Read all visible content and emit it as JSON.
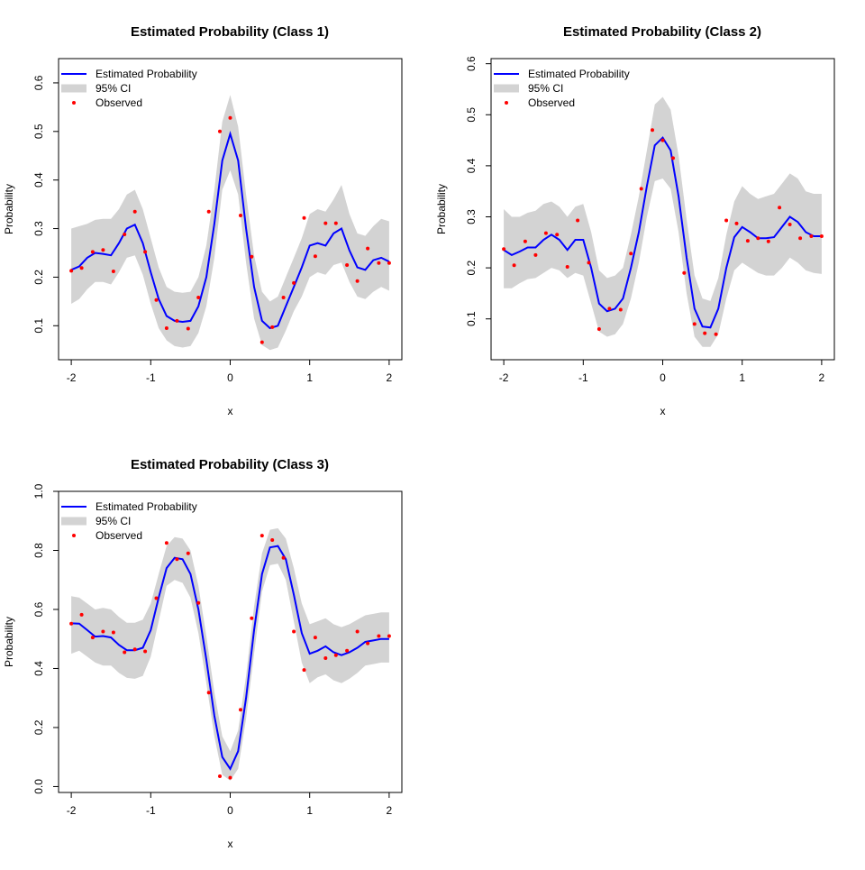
{
  "chart_data": [
    {
      "type": "line",
      "title": "Estimated Probability (Class 1)",
      "xlabel": "x",
      "ylabel": "Probability",
      "xlim": [
        -2,
        2
      ],
      "ylim": [
        0.03,
        0.65
      ],
      "xticks": [
        "-2",
        "-1",
        "0",
        "1",
        "2"
      ],
      "yticks": [
        "0.1",
        "0.2",
        "0.3",
        "0.4",
        "0.5",
        "0.6"
      ],
      "legend": {
        "position": "top-left",
        "entries": [
          "Estimated Probability",
          "95% CI",
          "Observed"
        ]
      },
      "colors": {
        "estimate": "#0000ff",
        "ci": "#d3d3d3",
        "observed": "#ff0000"
      },
      "series": [
        {
          "name": "Estimated Probability",
          "x": [
            -2,
            -1.9,
            -1.8,
            -1.7,
            -1.6,
            -1.5,
            -1.4,
            -1.3,
            -1.2,
            -1.1,
            -1.0,
            -0.9,
            -0.8,
            -0.7,
            -0.6,
            -0.5,
            -0.4,
            -0.3,
            -0.2,
            -0.1,
            0.0,
            0.1,
            0.2,
            0.3,
            0.4,
            0.5,
            0.6,
            0.7,
            0.8,
            0.9,
            1.0,
            1.1,
            1.2,
            1.3,
            1.4,
            1.5,
            1.6,
            1.7,
            1.8,
            1.9,
            2.0
          ],
          "y": [
            0.215,
            0.222,
            0.24,
            0.25,
            0.248,
            0.245,
            0.27,
            0.3,
            0.308,
            0.27,
            0.21,
            0.155,
            0.12,
            0.11,
            0.108,
            0.11,
            0.14,
            0.2,
            0.31,
            0.44,
            0.495,
            0.44,
            0.3,
            0.18,
            0.11,
            0.095,
            0.1,
            0.14,
            0.18,
            0.22,
            0.265,
            0.27,
            0.265,
            0.29,
            0.3,
            0.255,
            0.22,
            0.215,
            0.235,
            0.24,
            0.232
          ]
        },
        {
          "name": "95% CI",
          "lower": [
            0.145,
            0.155,
            0.175,
            0.19,
            0.19,
            0.185,
            0.21,
            0.24,
            0.245,
            0.205,
            0.145,
            0.095,
            0.07,
            0.058,
            0.055,
            0.058,
            0.085,
            0.14,
            0.24,
            0.38,
            0.42,
            0.37,
            0.23,
            0.115,
            0.06,
            0.05,
            0.055,
            0.09,
            0.13,
            0.16,
            0.2,
            0.21,
            0.205,
            0.225,
            0.23,
            0.19,
            0.16,
            0.155,
            0.17,
            0.18,
            0.172
          ],
          "upper": [
            0.3,
            0.305,
            0.31,
            0.318,
            0.32,
            0.32,
            0.34,
            0.37,
            0.38,
            0.34,
            0.28,
            0.22,
            0.18,
            0.17,
            0.168,
            0.17,
            0.2,
            0.265,
            0.38,
            0.52,
            0.575,
            0.51,
            0.37,
            0.245,
            0.17,
            0.15,
            0.16,
            0.2,
            0.24,
            0.28,
            0.33,
            0.34,
            0.335,
            0.36,
            0.39,
            0.33,
            0.29,
            0.285,
            0.305,
            0.32,
            0.315
          ]
        },
        {
          "name": "Observed",
          "x": [
            -2.0,
            -1.87,
            -1.73,
            -1.6,
            -1.47,
            -1.33,
            -1.2,
            -1.07,
            -0.93,
            -0.8,
            -0.67,
            -0.53,
            -0.4,
            -0.27,
            -0.13,
            0.0,
            0.13,
            0.27,
            0.4,
            0.53,
            0.67,
            0.8,
            0.93,
            1.07,
            1.2,
            1.33,
            1.47,
            1.6,
            1.73,
            1.87,
            2.0
          ],
          "y": [
            0.213,
            0.219,
            0.252,
            0.256,
            0.212,
            0.288,
            0.335,
            0.252,
            0.153,
            0.095,
            0.11,
            0.094,
            0.158,
            0.335,
            0.5,
            0.528,
            0.327,
            0.242,
            0.066,
            0.097,
            0.158,
            0.188,
            0.322,
            0.243,
            0.311,
            0.311,
            0.225,
            0.192,
            0.259,
            0.229,
            0.229
          ]
        }
      ]
    },
    {
      "type": "line",
      "title": "Estimated Probability (Class 2)",
      "xlabel": "x",
      "ylabel": "Probability",
      "xlim": [
        -2,
        2
      ],
      "ylim": [
        0.02,
        0.61
      ],
      "xticks": [
        "-2",
        "-1",
        "0",
        "1",
        "2"
      ],
      "yticks": [
        "0.1",
        "0.2",
        "0.3",
        "0.4",
        "0.5",
        "0.6"
      ],
      "legend": {
        "position": "top-left",
        "entries": [
          "Estimated Probability",
          "95% CI",
          "Observed"
        ]
      },
      "colors": {
        "estimate": "#0000ff",
        "ci": "#d3d3d3",
        "observed": "#ff0000"
      },
      "series": [
        {
          "name": "Estimated Probability",
          "x": [
            -2,
            -1.9,
            -1.8,
            -1.7,
            -1.6,
            -1.5,
            -1.4,
            -1.3,
            -1.2,
            -1.1,
            -1.0,
            -0.9,
            -0.8,
            -0.7,
            -0.6,
            -0.5,
            -0.4,
            -0.3,
            -0.2,
            -0.1,
            0.0,
            0.1,
            0.2,
            0.3,
            0.4,
            0.5,
            0.6,
            0.7,
            0.8,
            0.9,
            1.0,
            1.1,
            1.2,
            1.3,
            1.4,
            1.5,
            1.6,
            1.7,
            1.8,
            1.9,
            2.0
          ],
          "y": [
            0.235,
            0.225,
            0.232,
            0.24,
            0.24,
            0.255,
            0.265,
            0.255,
            0.235,
            0.255,
            0.255,
            0.2,
            0.13,
            0.115,
            0.12,
            0.14,
            0.2,
            0.27,
            0.36,
            0.44,
            0.455,
            0.43,
            0.34,
            0.22,
            0.12,
            0.085,
            0.083,
            0.12,
            0.2,
            0.26,
            0.28,
            0.27,
            0.258,
            0.258,
            0.26,
            0.28,
            0.3,
            0.29,
            0.27,
            0.262,
            0.262
          ]
        },
        {
          "name": "95% CI",
          "lower": [
            0.16,
            0.16,
            0.17,
            0.178,
            0.18,
            0.19,
            0.2,
            0.195,
            0.18,
            0.19,
            0.185,
            0.13,
            0.075,
            0.065,
            0.07,
            0.09,
            0.14,
            0.21,
            0.3,
            0.37,
            0.375,
            0.355,
            0.27,
            0.15,
            0.065,
            0.045,
            0.045,
            0.07,
            0.14,
            0.195,
            0.21,
            0.2,
            0.19,
            0.185,
            0.185,
            0.2,
            0.22,
            0.21,
            0.195,
            0.19,
            0.188
          ],
          "upper": [
            0.315,
            0.3,
            0.3,
            0.308,
            0.312,
            0.325,
            0.33,
            0.32,
            0.3,
            0.32,
            0.325,
            0.27,
            0.195,
            0.18,
            0.185,
            0.2,
            0.265,
            0.34,
            0.43,
            0.52,
            0.535,
            0.51,
            0.42,
            0.295,
            0.185,
            0.14,
            0.135,
            0.18,
            0.265,
            0.33,
            0.36,
            0.345,
            0.335,
            0.34,
            0.345,
            0.365,
            0.385,
            0.375,
            0.35,
            0.345,
            0.345
          ]
        },
        {
          "name": "Observed",
          "x": [
            -2.0,
            -1.87,
            -1.73,
            -1.6,
            -1.47,
            -1.33,
            -1.2,
            -1.07,
            -0.93,
            -0.8,
            -0.67,
            -0.53,
            -0.4,
            -0.27,
            -0.13,
            0.0,
            0.13,
            0.27,
            0.4,
            0.53,
            0.67,
            0.8,
            0.93,
            1.07,
            1.2,
            1.33,
            1.47,
            1.6,
            1.73,
            1.87,
            2.0
          ],
          "y": [
            0.237,
            0.205,
            0.252,
            0.225,
            0.268,
            0.265,
            0.202,
            0.293,
            0.21,
            0.08,
            0.12,
            0.118,
            0.228,
            0.355,
            0.47,
            0.45,
            0.415,
            0.19,
            0.09,
            0.072,
            0.07,
            0.293,
            0.287,
            0.253,
            0.258,
            0.252,
            0.318,
            0.285,
            0.258,
            0.262,
            0.262
          ]
        }
      ]
    },
    {
      "type": "line",
      "title": "Estimated Probability (Class 3)",
      "xlabel": "x",
      "ylabel": "Probability",
      "xlim": [
        -2,
        2
      ],
      "ylim": [
        -0.02,
        1.0
      ],
      "xticks": [
        "-2",
        "-1",
        "0",
        "1",
        "2"
      ],
      "yticks": [
        "0.0",
        "0.2",
        "0.4",
        "0.6",
        "0.8",
        "1.0"
      ],
      "legend": {
        "position": "top-left",
        "entries": [
          "Estimated Probability",
          "95% CI",
          "Observed"
        ]
      },
      "colors": {
        "estimate": "#0000ff",
        "ci": "#d3d3d3",
        "observed": "#ff0000"
      },
      "series": [
        {
          "name": "Estimated Probability",
          "x": [
            -2,
            -1.9,
            -1.8,
            -1.7,
            -1.6,
            -1.5,
            -1.4,
            -1.3,
            -1.2,
            -1.1,
            -1.0,
            -0.9,
            -0.8,
            -0.7,
            -0.6,
            -0.5,
            -0.4,
            -0.3,
            -0.2,
            -0.1,
            0.0,
            0.1,
            0.2,
            0.3,
            0.4,
            0.5,
            0.6,
            0.7,
            0.8,
            0.9,
            1.0,
            1.1,
            1.2,
            1.3,
            1.4,
            1.5,
            1.6,
            1.7,
            1.8,
            1.9,
            2.0
          ],
          "y": [
            0.553,
            0.552,
            0.53,
            0.508,
            0.51,
            0.505,
            0.48,
            0.462,
            0.462,
            0.47,
            0.53,
            0.64,
            0.74,
            0.775,
            0.77,
            0.72,
            0.6,
            0.43,
            0.24,
            0.1,
            0.06,
            0.12,
            0.3,
            0.53,
            0.72,
            0.81,
            0.815,
            0.77,
            0.65,
            0.52,
            0.45,
            0.46,
            0.475,
            0.455,
            0.445,
            0.455,
            0.47,
            0.49,
            0.495,
            0.5,
            0.5
          ]
        },
        {
          "name": "95% CI",
          "lower": [
            0.45,
            0.46,
            0.44,
            0.42,
            0.41,
            0.41,
            0.385,
            0.368,
            0.365,
            0.375,
            0.44,
            0.56,
            0.68,
            0.7,
            0.69,
            0.64,
            0.52,
            0.35,
            0.17,
            0.04,
            0.02,
            0.06,
            0.23,
            0.45,
            0.66,
            0.75,
            0.755,
            0.7,
            0.56,
            0.42,
            0.35,
            0.37,
            0.38,
            0.36,
            0.35,
            0.365,
            0.385,
            0.41,
            0.415,
            0.42,
            0.42
          ],
          "upper": [
            0.645,
            0.64,
            0.62,
            0.6,
            0.605,
            0.6,
            0.575,
            0.555,
            0.555,
            0.565,
            0.62,
            0.72,
            0.815,
            0.845,
            0.84,
            0.8,
            0.68,
            0.51,
            0.32,
            0.17,
            0.12,
            0.19,
            0.375,
            0.61,
            0.79,
            0.87,
            0.875,
            0.84,
            0.74,
            0.62,
            0.55,
            0.56,
            0.57,
            0.55,
            0.54,
            0.55,
            0.565,
            0.58,
            0.585,
            0.59,
            0.59
          ]
        },
        {
          "name": "Observed",
          "x": [
            -2.0,
            -1.87,
            -1.73,
            -1.6,
            -1.47,
            -1.33,
            -1.2,
            -1.07,
            -0.93,
            -0.8,
            -0.67,
            -0.53,
            -0.4,
            -0.27,
            -0.13,
            0.0,
            0.13,
            0.27,
            0.4,
            0.53,
            0.67,
            0.8,
            0.93,
            1.07,
            1.2,
            1.33,
            1.47,
            1.6,
            1.73,
            1.87,
            2.0
          ],
          "y": [
            0.552,
            0.582,
            0.505,
            0.525,
            0.522,
            0.455,
            0.465,
            0.458,
            0.638,
            0.825,
            0.77,
            0.79,
            0.622,
            0.318,
            0.035,
            0.03,
            0.26,
            0.57,
            0.85,
            0.835,
            0.775,
            0.525,
            0.395,
            0.505,
            0.435,
            0.445,
            0.46,
            0.525,
            0.485,
            0.51,
            0.51
          ]
        }
      ]
    }
  ]
}
